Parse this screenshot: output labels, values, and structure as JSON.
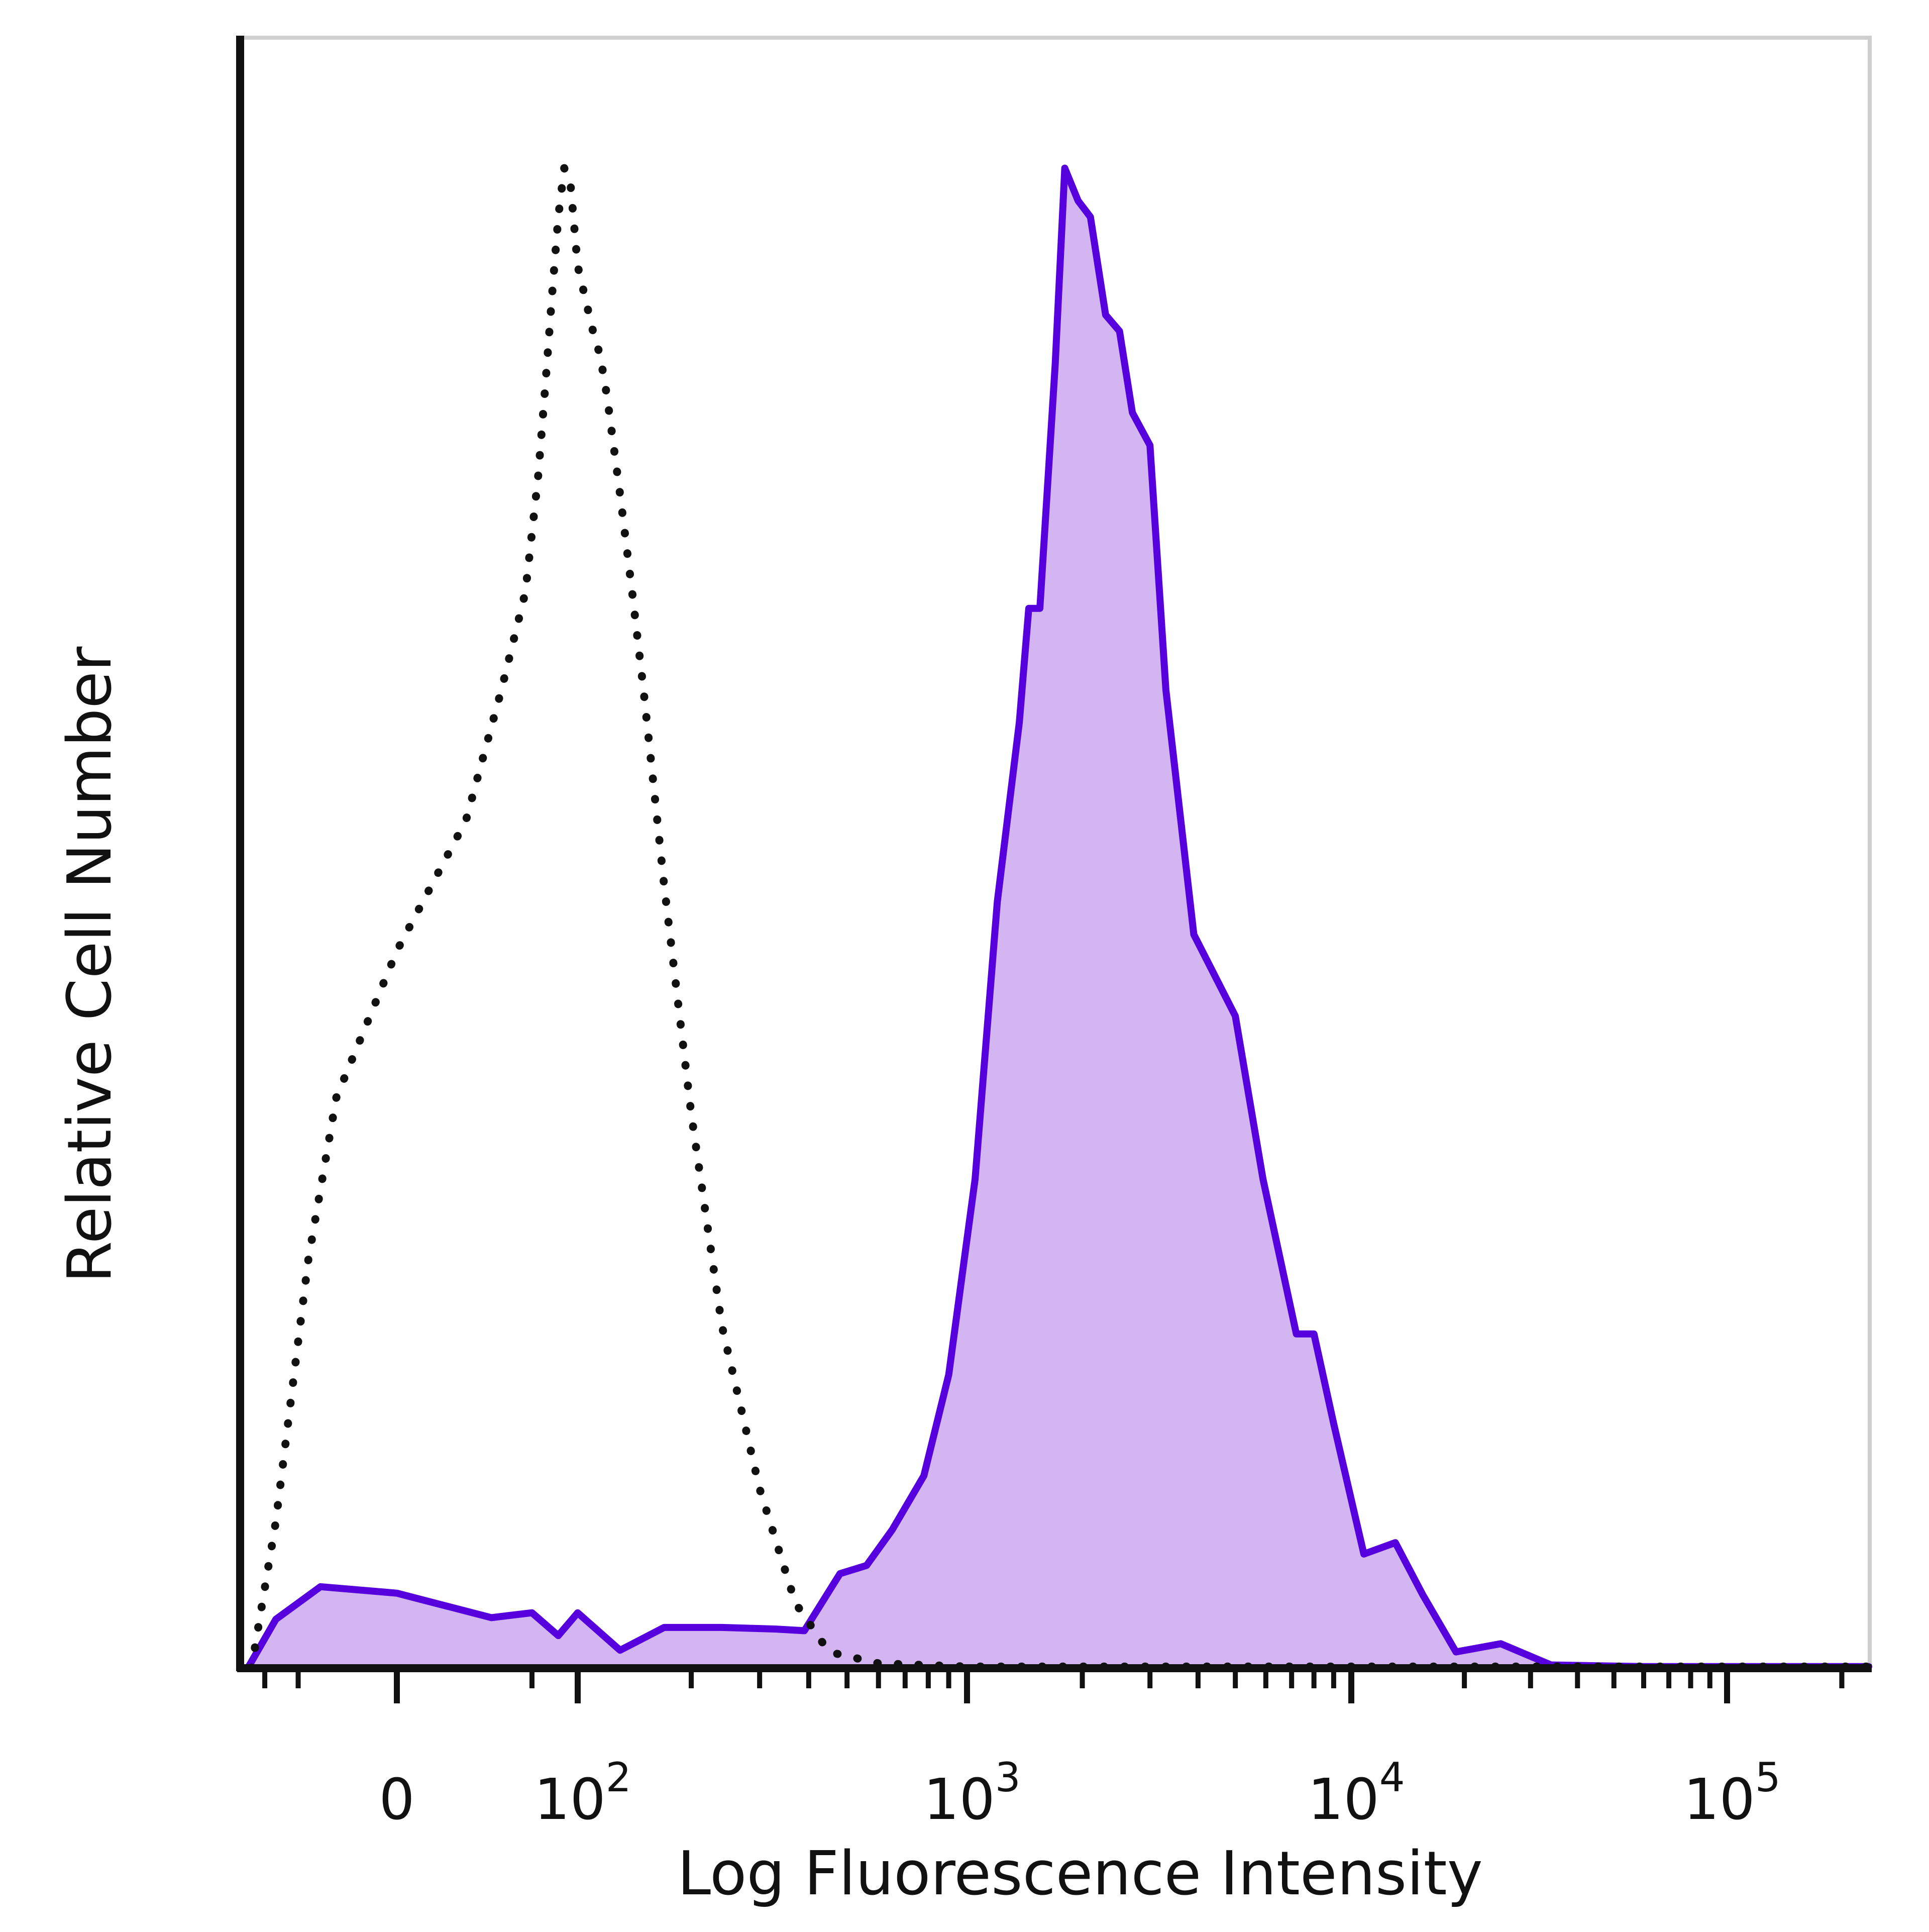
{
  "colors": {
    "stained_line": "#5500dd",
    "stained_fill": "#d3b6f1",
    "control_line": "#111111",
    "frame": "#cfcfcf",
    "axis": "#111111"
  },
  "chart_data": {
    "type": "area",
    "title": "",
    "xlabel": "Log Fluorescence Intensity",
    "ylabel": "Relative Cell Number",
    "x_scale": "biexponential",
    "y_ticks_labeled": false,
    "grid": false,
    "legend": "none",
    "xlim": [
      -150,
      250000
    ],
    "ylim": [
      0,
      100
    ],
    "x_ticks": [
      {
        "value": 0,
        "base": "0",
        "exp": ""
      },
      {
        "value": 100,
        "base": "10",
        "exp": "2"
      },
      {
        "value": 1000,
        "base": "10",
        "exp": "3"
      },
      {
        "value": 10000,
        "base": "10",
        "exp": "4"
      },
      {
        "value": 100000,
        "base": "10",
        "exp": "5"
      }
    ],
    "series": [
      {
        "style": "filled-solid",
        "points": [
          [
            -140,
            0
          ],
          [
            -80,
            3
          ],
          [
            -30,
            5
          ],
          [
            0,
            4.6
          ],
          [
            25,
            3.1
          ],
          [
            50,
            3.4
          ],
          [
            75,
            2
          ],
          [
            100,
            3.4
          ],
          [
            130,
            1.1
          ],
          [
            170,
            2.5
          ],
          [
            240,
            2.5
          ],
          [
            330,
            2.4
          ],
          [
            390,
            2.3
          ],
          [
            480,
            5.8
          ],
          [
            560,
            6.3
          ],
          [
            650,
            8.5
          ],
          [
            780,
            11.8
          ],
          [
            900,
            18
          ],
          [
            1050,
            30
          ],
          [
            1200,
            47
          ],
          [
            1370,
            58
          ],
          [
            1450,
            65
          ],
          [
            1550,
            65
          ],
          [
            1700,
            80
          ],
          [
            1800,
            92
          ],
          [
            1950,
            90
          ],
          [
            2100,
            89
          ],
          [
            2300,
            83
          ],
          [
            2500,
            82
          ],
          [
            2700,
            77
          ],
          [
            3000,
            75
          ],
          [
            3300,
            60
          ],
          [
            3900,
            45
          ],
          [
            5000,
            40
          ],
          [
            5900,
            30
          ],
          [
            7200,
            20.5
          ],
          [
            8000,
            20.5
          ],
          [
            9000,
            15
          ],
          [
            10800,
            7
          ],
          [
            13100,
            7.7
          ],
          [
            15500,
            4.5
          ],
          [
            19000,
            1
          ],
          [
            25000,
            1.5
          ],
          [
            34000,
            0.2
          ],
          [
            60000,
            0.1
          ],
          [
            250000,
            0.1
          ]
        ]
      },
      {
        "style": "dotted",
        "points": [
          [
            -130,
            0
          ],
          [
            -80,
            9
          ],
          [
            -40,
            25
          ],
          [
            -20,
            35
          ],
          [
            0,
            44
          ],
          [
            15,
            52
          ],
          [
            30,
            60
          ],
          [
            45,
            66
          ],
          [
            55,
            73
          ],
          [
            62,
            79
          ],
          [
            68,
            84
          ],
          [
            75,
            89
          ],
          [
            82,
            92
          ],
          [
            90,
            91
          ],
          [
            100,
            86
          ],
          [
            110,
            82
          ],
          [
            115,
            80.5
          ],
          [
            120,
            78
          ],
          [
            130,
            72
          ],
          [
            140,
            66
          ],
          [
            150,
            60
          ],
          [
            170,
            48
          ],
          [
            200,
            34
          ],
          [
            240,
            21
          ],
          [
            300,
            11
          ],
          [
            370,
            4
          ],
          [
            450,
            1
          ],
          [
            600,
            0.3
          ],
          [
            1000,
            0.1
          ],
          [
            250000,
            0.1
          ]
        ]
      }
    ]
  }
}
